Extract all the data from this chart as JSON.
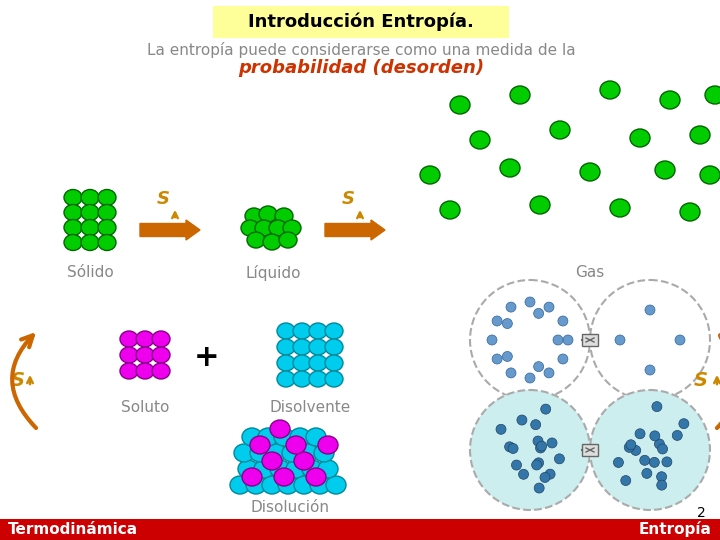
{
  "title": "Introducción Entropía.",
  "title_bg": "#ffff99",
  "subtitle_line1": "La entropía puede considerarse como una medida de la",
  "subtitle_line2": "probabilidad (desorden)",
  "subtitle_color": "#888888",
  "subtitle2_color": "#cc3300",
  "label_solid": "Sólido",
  "label_liquid": "Líquido",
  "label_gas": "Gas",
  "label_solute": "Soluto",
  "label_solvent": "Disolvente",
  "label_solution": "Disolución",
  "label_color": "#888888",
  "S_color": "#cc8800",
  "arrow_color": "#cc6600",
  "green": "#00cc00",
  "green_edge": "#006600",
  "magenta": "#ee00ee",
  "magenta_edge": "#880088",
  "cyan": "#00ccee",
  "cyan_edge": "#008899",
  "footer_bg": "#cc0000",
  "footer_text_left": "Termodinámica",
  "footer_text_right": "Entropía",
  "footer_text_color": "#ffffff",
  "page_num": "2",
  "bg_color": "#ffffff"
}
